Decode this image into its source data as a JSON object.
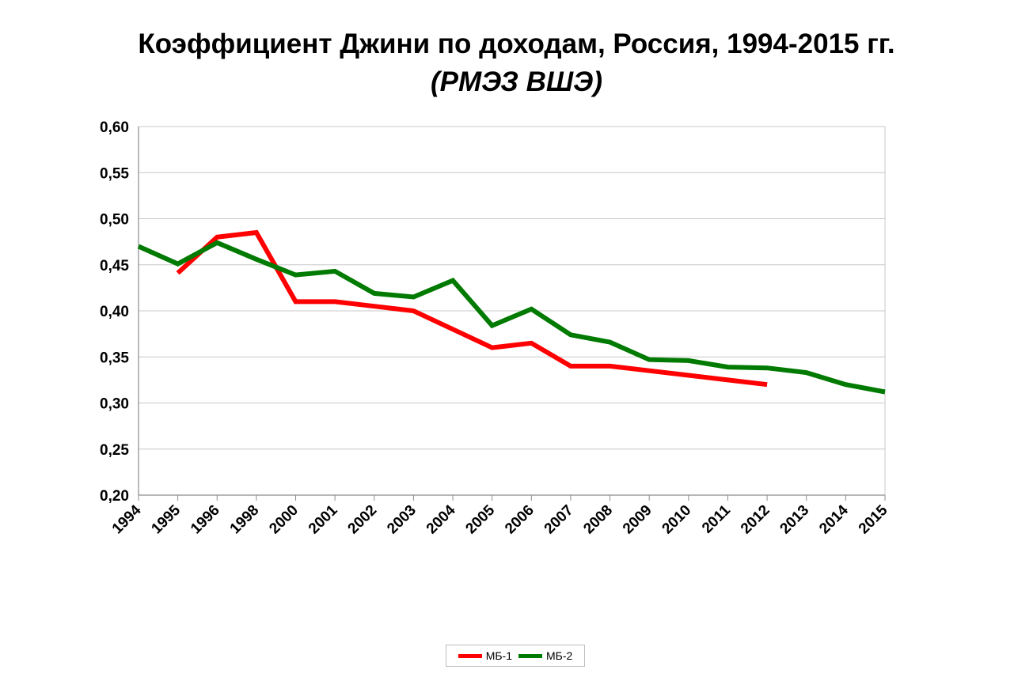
{
  "chart_data": {
    "type": "line",
    "title": "Коэффициент Джини по доходам, Россия, 1994-2015 гг.",
    "subtitle": "(РМЭЗ ВШЭ)",
    "categories": [
      "1994",
      "1995",
      "1996",
      "1998",
      "2000",
      "2001",
      "2002",
      "2003",
      "2004",
      "2005",
      "2006",
      "2007",
      "2008",
      "2009",
      "2010",
      "2011",
      "2012",
      "2013",
      "2014",
      "2015"
    ],
    "series": [
      {
        "name": "МБ-1",
        "color": "#ff0000",
        "values": [
          null,
          0.441,
          0.48,
          0.485,
          0.41,
          0.41,
          0.405,
          0.4,
          0.38,
          0.36,
          0.365,
          0.34,
          0.34,
          0.335,
          0.33,
          0.325,
          0.32,
          null,
          null,
          null
        ]
      },
      {
        "name": "МБ-2",
        "color": "#007a00",
        "values": [
          0.47,
          0.451,
          0.474,
          0.456,
          0.439,
          0.443,
          0.419,
          0.415,
          0.433,
          0.384,
          0.402,
          0.374,
          0.366,
          0.347,
          0.346,
          0.339,
          0.338,
          0.333,
          0.32,
          0.312
        ]
      }
    ],
    "y_ticks": [
      "0,20",
      "0,25",
      "0,30",
      "0,35",
      "0,40",
      "0,45",
      "0,50",
      "0,55",
      "0,60"
    ],
    "ylim": [
      0.2,
      0.6
    ],
    "grid": true,
    "legend_position": "bottom"
  }
}
